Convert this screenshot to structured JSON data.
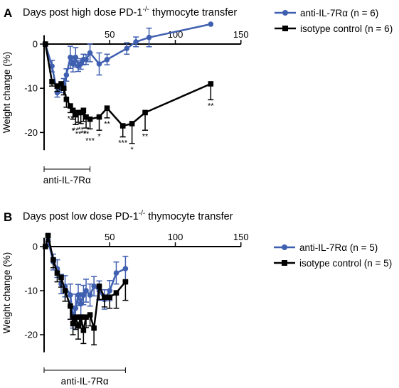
{
  "colors": {
    "treatment": "#3f5fb0",
    "control": "#000000",
    "axis": "#000000"
  },
  "chart_data": [
    {
      "panel_label": "A",
      "type": "line",
      "title_prefix": "Days post high dose PD-1",
      "title_sup": "-/-",
      "title_suffix": " thymocyte transfer",
      "ylabel": "Weight change (%)",
      "xlim": [
        0,
        150
      ],
      "ylim": [
        -24,
        0
      ],
      "xticks": [
        50,
        100,
        150
      ],
      "yticks": [
        0,
        -10,
        -20
      ],
      "treatment_bar": {
        "label": "anti-IL-7Rα",
        "start": 0,
        "end": 35
      },
      "series": [
        {
          "name": "anti-IL-7Rα (n = 6)",
          "color": "#3f5fb0",
          "marker": "circle",
          "x": [
            1,
            6,
            10,
            13,
            15,
            17,
            20,
            22,
            24,
            26,
            28,
            30,
            32,
            35,
            42,
            48,
            63,
            70,
            80,
            127
          ],
          "y": [
            0,
            -5,
            -11,
            -10,
            -9,
            -7,
            -3,
            -4.5,
            -3,
            -5,
            -4.5,
            -3.5,
            -3.5,
            -2,
            -4.5,
            -3.5,
            -1,
            0.5,
            1.5,
            4.5
          ],
          "err": [
            0,
            1.3,
            1,
            1,
            1.2,
            1.4,
            2.5,
            1.8,
            2.2,
            1.2,
            1.2,
            1.2,
            1.1,
            2,
            2.5,
            1.2,
            1.3,
            1.1,
            2.1,
            0
          ],
          "err_dir": "both"
        },
        {
          "name": "isotype control (n = 6)",
          "color": "#000000",
          "marker": "square",
          "x": [
            1,
            6,
            10,
            13,
            15,
            17,
            20,
            22,
            24,
            26,
            28,
            30,
            32,
            35,
            42,
            48,
            60,
            67,
            77,
            127
          ],
          "y": [
            0,
            -8.5,
            -9.5,
            -9,
            -10,
            -12.5,
            -14,
            -15,
            -16,
            -15.5,
            -15.5,
            -15,
            -16.5,
            -17,
            -16.5,
            -14.5,
            -18.5,
            -18,
            -15.5,
            -9
          ],
          "err": [
            0,
            1,
            1.2,
            1.3,
            1.5,
            1.8,
            1.5,
            2,
            2.2,
            2.2,
            2.5,
            2.5,
            2.5,
            2.2,
            3,
            2.2,
            2.5,
            4.5,
            4,
            3.6
          ],
          "err_dir": "down"
        }
      ],
      "significance": [
        {
          "x": 20,
          "text": "**"
        },
        {
          "x": 22,
          "text": "*"
        },
        {
          "x": 24,
          "text": "**"
        },
        {
          "x": 26,
          "text": "**"
        },
        {
          "x": 28,
          "text": "**"
        },
        {
          "x": 30,
          "text": "**"
        },
        {
          "x": 32,
          "text": "**"
        },
        {
          "x": 35,
          "text": "***"
        },
        {
          "x": 42,
          "text": "*"
        },
        {
          "x": 48,
          "text": "**"
        },
        {
          "x": 60,
          "text": "***"
        },
        {
          "x": 67,
          "text": "*"
        },
        {
          "x": 77,
          "text": "**"
        },
        {
          "x": 127,
          "text": "**"
        }
      ]
    },
    {
      "panel_label": "B",
      "type": "line",
      "title_prefix": "Days post low dose PD-1",
      "title_sup": "-/-",
      "title_suffix": " thymocyte transfer",
      "ylabel": "Weight change (%)",
      "xlim": [
        0,
        150
      ],
      "ylim": [
        -24,
        0
      ],
      "xticks": [
        50,
        100,
        150
      ],
      "yticks": [
        0,
        -10,
        -20
      ],
      "treatment_bar": {
        "label": "anti-IL-7Rα",
        "start": 0,
        "end": 62
      },
      "series": [
        {
          "name": "anti-IL-7Rα (n = 5)",
          "color": "#3f5fb0",
          "marker": "circle",
          "x": [
            1,
            3,
            7,
            10,
            13,
            16,
            20,
            22,
            24,
            26,
            28,
            30,
            32,
            35,
            38,
            42,
            46,
            50,
            55,
            62
          ],
          "y": [
            0,
            1.5,
            -3.5,
            -5,
            -8.5,
            -9,
            -11,
            -16,
            -14,
            -11,
            -13,
            -11,
            -10,
            -11,
            -9,
            -10,
            -12,
            -10,
            -6,
            -5
          ],
          "err": [
            0,
            1.2,
            1.8,
            2,
            2.2,
            2.4,
            2.5,
            2.5,
            3.2,
            2.4,
            2.5,
            2.2,
            2.6,
            2.5,
            2.2,
            2.2,
            2.2,
            2.3,
            2.5,
            2.8
          ],
          "err_dir": "both"
        },
        {
          "name": "isotype control (n = 5)",
          "color": "#000000",
          "marker": "square",
          "x": [
            1,
            3,
            7,
            10,
            13,
            16,
            20,
            22,
            24,
            26,
            28,
            30,
            32,
            35,
            38,
            42,
            46,
            50,
            55,
            62
          ],
          "y": [
            0,
            2.5,
            -3,
            -6,
            -7,
            -10,
            -13.5,
            -17.5,
            -16,
            -18,
            -16,
            -19,
            -16,
            -15.5,
            -18.5,
            -9,
            -11.5,
            -11.5,
            -10.5,
            -8
          ],
          "err": [
            0,
            1.4,
            1.8,
            2,
            2.2,
            2.4,
            3,
            2.5,
            2.8,
            3,
            2.5,
            3,
            2.4,
            2.5,
            3.8,
            3,
            2.2,
            2.5,
            3.5,
            4.2
          ],
          "err_dir": "down"
        }
      ],
      "significance": []
    }
  ]
}
